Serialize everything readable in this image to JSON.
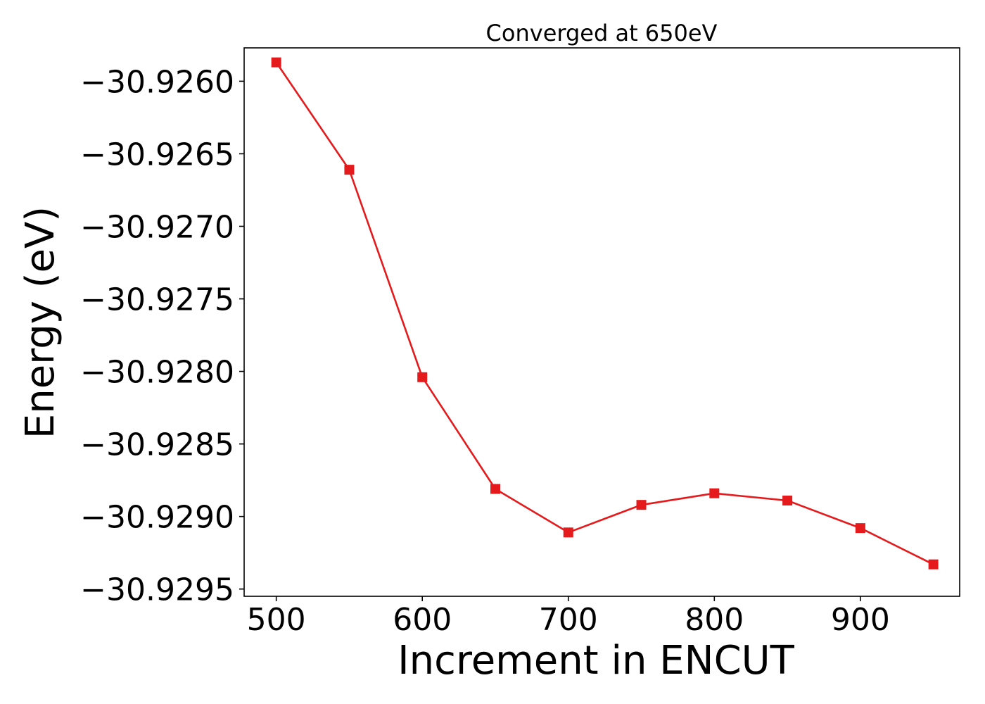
{
  "chart_data": {
    "type": "line",
    "title": "Converged at 650eV",
    "xlabel": "Increment in ENCUT",
    "ylabel": "Energy (eV)",
    "xlim": [
      478,
      968
    ],
    "ylim": [
      -30.92955,
      -30.92577
    ],
    "xticks": [
      500,
      600,
      700,
      800,
      900
    ],
    "xtick_labels": [
      "500",
      "600",
      "700",
      "800",
      "900"
    ],
    "yticks": [
      -30.926,
      -30.9265,
      -30.927,
      -30.9275,
      -30.928,
      -30.9285,
      -30.929,
      -30.9295
    ],
    "ytick_labels": [
      "−30.9260",
      "−30.9265",
      "−30.9270",
      "−30.9275",
      "−30.9280",
      "−30.9285",
      "−30.9290",
      "−30.9295"
    ],
    "grid": false,
    "series": [
      {
        "color": "#e41a1c",
        "marker": "square",
        "x": [
          500,
          550,
          600,
          650,
          700,
          750,
          800,
          850,
          900,
          950
        ],
        "y": [
          -30.92587,
          -30.92661,
          -30.92804,
          -30.92881,
          -30.92911,
          -30.92892,
          -30.92884,
          -30.92889,
          -30.92908,
          -30.92933
        ]
      }
    ]
  }
}
